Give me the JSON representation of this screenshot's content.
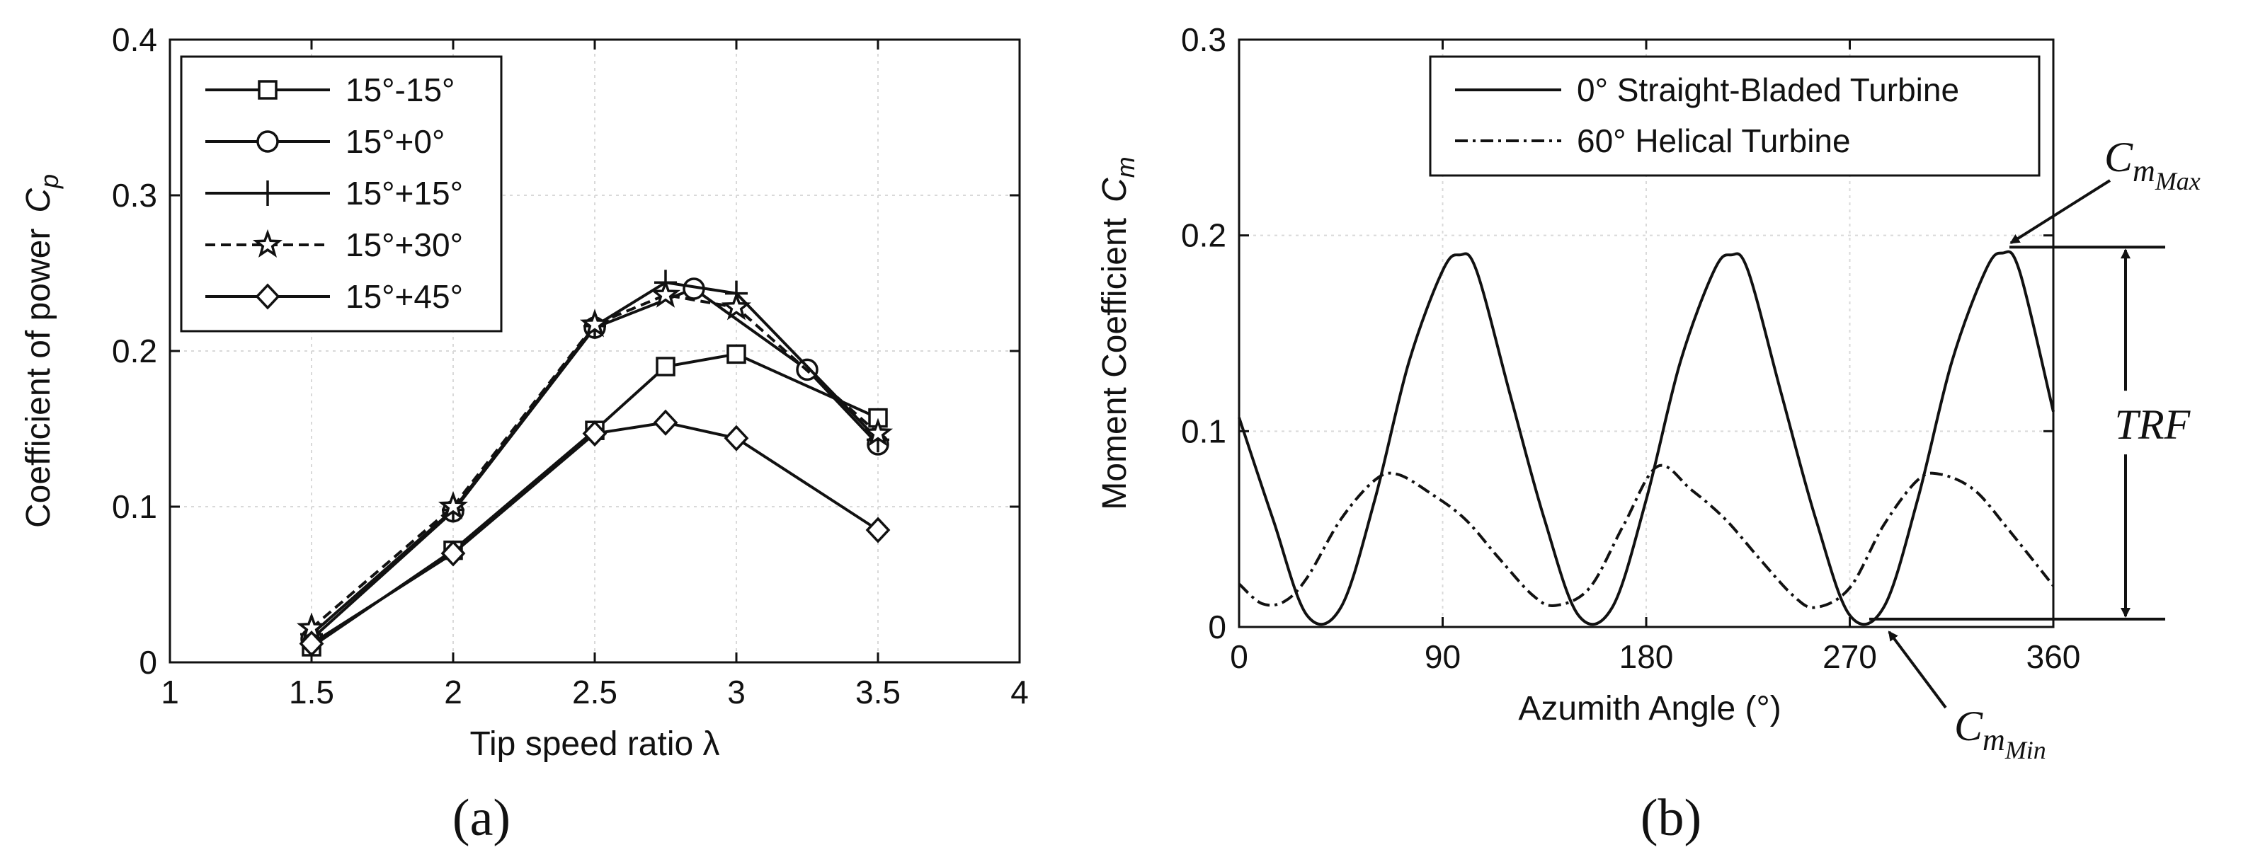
{
  "chart_data": [
    {
      "type": "line",
      "panel": "a",
      "caption": "(a)",
      "title": "",
      "xlabel": "Tip speed ratio λ",
      "ylabel": "Coefficient of power",
      "ylabel_symbol": "C",
      "ylabel_subscript": "p",
      "xlim": [
        1,
        4
      ],
      "ylim": [
        0,
        0.4
      ],
      "xticks": [
        1,
        1.5,
        2,
        2.5,
        3,
        3.5,
        4
      ],
      "xtick_labels": [
        "1",
        "1.5",
        "2",
        "2.5",
        "3",
        "3.5",
        "4"
      ],
      "yticks": [
        0,
        0.1,
        0.2,
        0.3,
        0.4
      ],
      "ytick_labels": [
        "0",
        "0.1",
        "0.2",
        "0.3",
        "0.4"
      ],
      "grid": true,
      "legend_position": "top-left",
      "series": [
        {
          "name": "15°-15°",
          "marker": "square",
          "dash": "solid",
          "x": [
            1.5,
            2,
            2.5,
            2.75,
            3,
            3.5
          ],
          "y": [
            0.01,
            0.072,
            0.149,
            0.19,
            0.198,
            0.157
          ]
        },
        {
          "name": "15°+0°",
          "marker": "circle",
          "dash": "solid",
          "x": [
            1.5,
            2,
            2.5,
            2.85,
            3.25,
            3.5
          ],
          "y": [
            0.015,
            0.097,
            0.215,
            0.24,
            0.188,
            0.14
          ]
        },
        {
          "name": "15°+15°",
          "marker": "plus",
          "dash": "solid",
          "x": [
            1.5,
            2,
            2.5,
            2.75,
            3,
            3.5
          ],
          "y": [
            0.018,
            0.098,
            0.216,
            0.244,
            0.237,
            0.143
          ]
        },
        {
          "name": "15°+30°",
          "marker": "star",
          "dash": "dashed",
          "x": [
            1.5,
            2,
            2.5,
            2.75,
            3,
            3.5
          ],
          "y": [
            0.022,
            0.1,
            0.217,
            0.236,
            0.228,
            0.147
          ]
        },
        {
          "name": "15°+45°",
          "marker": "diamond",
          "dash": "solid",
          "x": [
            1.5,
            2,
            2.5,
            2.75,
            3,
            3.5
          ],
          "y": [
            0.012,
            0.07,
            0.147,
            0.154,
            0.144,
            0.085
          ]
        }
      ]
    },
    {
      "type": "line",
      "panel": "b",
      "caption": "(b)",
      "title": "",
      "xlabel": "Azumith Angle (°)",
      "ylabel": "Moment Coefficient",
      "ylabel_symbol": "C",
      "ylabel_subscript": "m",
      "xlim": [
        0,
        360
      ],
      "ylim": [
        0,
        0.3
      ],
      "xticks": [
        0,
        90,
        180,
        270,
        360
      ],
      "xtick_labels": [
        "0",
        "90",
        "180",
        "270",
        "360"
      ],
      "yticks": [
        0,
        0.1,
        0.2,
        0.3
      ],
      "ytick_labels": [
        "0",
        "0.1",
        "0.2",
        "0.3"
      ],
      "grid": true,
      "legend_position": "top-right",
      "series": [
        {
          "name": "0° Straight-Bladed Turbine",
          "dash": "solid",
          "x": [
            0,
            15,
            30,
            45,
            60,
            75,
            90,
            97.5,
            105,
            120,
            135,
            150,
            165,
            180,
            195,
            210,
            217.5,
            225,
            240,
            255,
            270,
            285,
            300,
            315,
            330,
            337.5,
            345,
            360
          ],
          "y": [
            0.107,
            0.055,
            0.006,
            0.01,
            0.065,
            0.135,
            0.182,
            0.19,
            0.182,
            0.118,
            0.055,
            0.006,
            0.01,
            0.065,
            0.135,
            0.182,
            0.19,
            0.182,
            0.118,
            0.055,
            0.006,
            0.01,
            0.065,
            0.135,
            0.182,
            0.191,
            0.182,
            0.11
          ]
        },
        {
          "name": "60° Helical Turbine",
          "dash": "dashdot",
          "x": [
            0,
            10,
            20,
            30,
            45,
            60,
            70,
            85,
            100,
            115,
            130,
            140,
            155,
            170,
            185,
            200,
            215,
            230,
            245,
            255,
            270,
            285,
            300,
            310,
            325,
            340,
            360
          ],
          "y": [
            0.022,
            0.012,
            0.013,
            0.025,
            0.055,
            0.075,
            0.078,
            0.068,
            0.055,
            0.035,
            0.016,
            0.011,
            0.02,
            0.052,
            0.082,
            0.07,
            0.055,
            0.035,
            0.016,
            0.01,
            0.02,
            0.052,
            0.075,
            0.078,
            0.07,
            0.05,
            0.021
          ]
        }
      ],
      "annotations": {
        "cm_max": {
          "symbol": "C",
          "sub": "m",
          "subsub": "Max",
          "y": 0.194
        },
        "cm_min": {
          "symbol": "C",
          "sub": "m",
          "subsub": "Min",
          "y": 0.004
        },
        "trf": "TRF"
      }
    }
  ]
}
